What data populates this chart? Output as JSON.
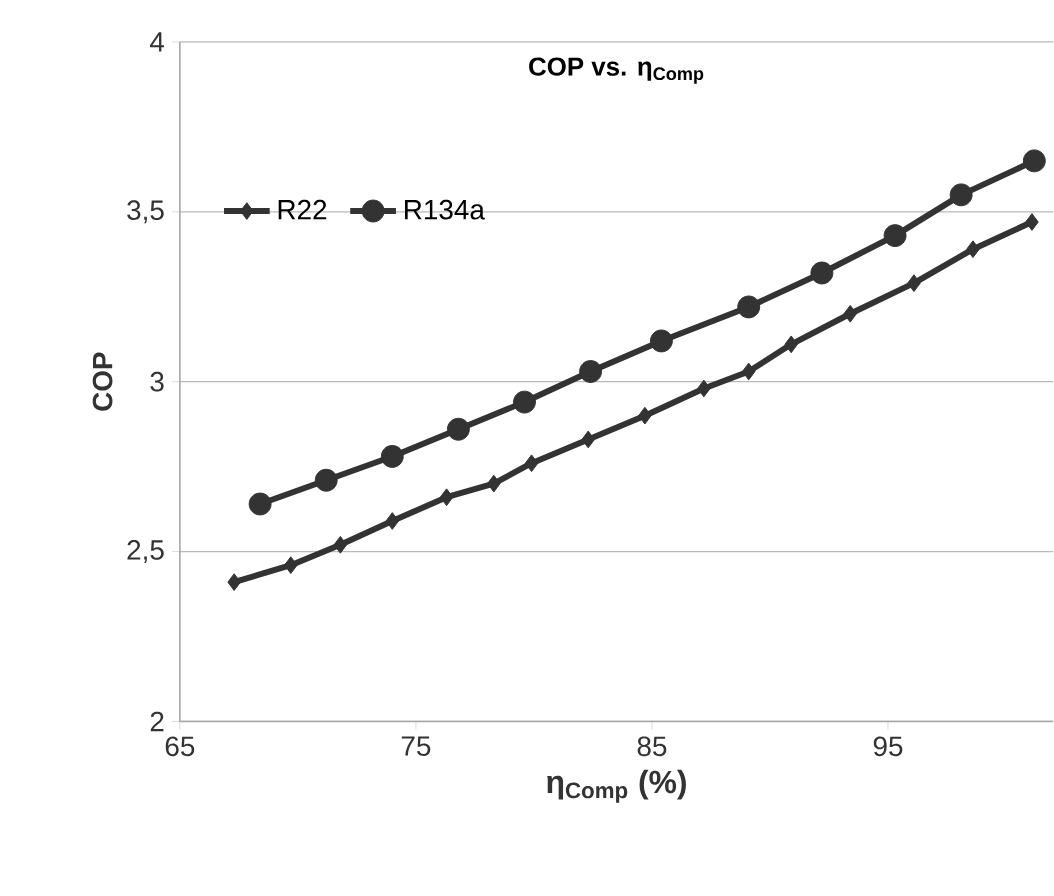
{
  "chart_data": {
    "type": "line",
    "title": "COP vs. η$_{Comp}$",
    "xlabel": "η$_{Comp}$ (%)",
    "ylabel": "COP",
    "xlim": [
      65,
      102
    ],
    "xticks": [
      65,
      75,
      85,
      95
    ],
    "ylim": [
      2,
      4
    ],
    "yticks": [
      2,
      {
        "value": 2.5,
        "label": "2,5"
      },
      3,
      {
        "value": 3.5,
        "label": "3,5"
      },
      4
    ],
    "grid": "y",
    "legend": "top left",
    "line_style": "solid",
    "series": [
      {
        "name": "R22",
        "color": "#333333",
        "marker": "diamond",
        "x": [
          67.3,
          69.7,
          71.8,
          74.0,
          76.3,
          78.3,
          79.9,
          82.3,
          84.7,
          87.2,
          89.1,
          90.9,
          93.4,
          96.1,
          98.6,
          101.1
        ],
        "values": [
          2.41,
          2.46,
          2.52,
          2.59,
          2.66,
          2.7,
          2.76,
          2.83,
          2.9,
          2.98,
          3.03,
          3.11,
          3.2,
          3.29,
          3.39,
          3.47
        ]
      },
      {
        "name": "R134a",
        "color": "#333333",
        "marker": "circle",
        "x": [
          68.4,
          71.2,
          74.0,
          76.8,
          79.6,
          82.4,
          85.4,
          89.1,
          92.2,
          95.3,
          98.1,
          101.2
        ],
        "values": [
          2.64,
          2.71,
          2.78,
          2.86,
          2.94,
          3.03,
          3.12,
          3.22,
          3.32,
          3.43,
          3.55,
          3.65
        ]
      }
    ]
  }
}
